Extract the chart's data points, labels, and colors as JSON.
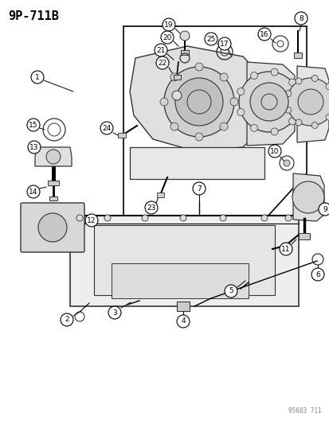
{
  "title": "9P-711B",
  "watermark": "95683 711",
  "bg_color": "#ffffff",
  "fig_width": 4.14,
  "fig_height": 5.33,
  "dpi": 100,
  "label_color": "#000000",
  "line_color": "#000000",
  "drawing_color": "#333333"
}
